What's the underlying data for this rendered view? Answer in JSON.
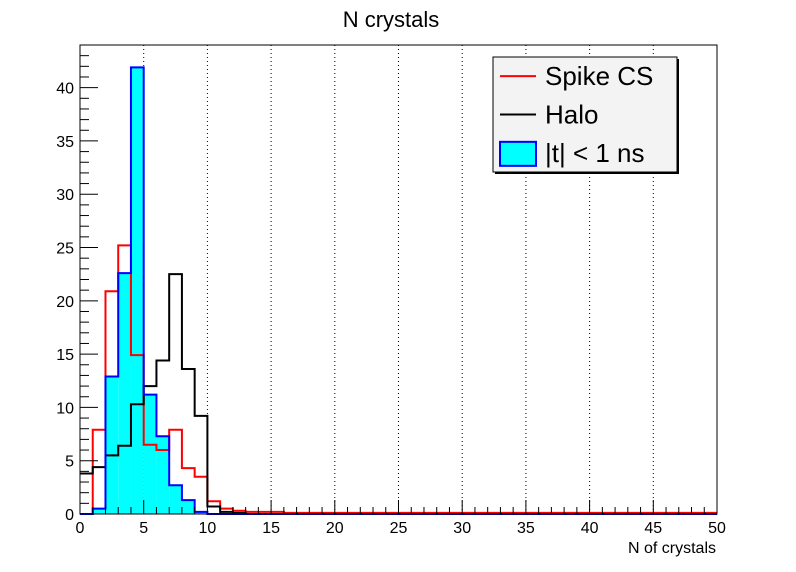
{
  "chart_data": {
    "type": "histogram",
    "title": "N crystals",
    "xlabel": "N of crystals",
    "ylabel": "",
    "xlim": [
      0,
      50
    ],
    "ylim": [
      0,
      44
    ],
    "bin_width": 1,
    "x_ticks": [
      0,
      5,
      10,
      15,
      20,
      25,
      30,
      35,
      40,
      45,
      50
    ],
    "x_tick_labels": [
      "0",
      "5",
      "10",
      "15",
      "20",
      "25",
      "30",
      "35",
      "40",
      "45",
      "50"
    ],
    "y_ticks": [
      0,
      5,
      10,
      15,
      20,
      25,
      30,
      35,
      40
    ],
    "y_tick_labels": [
      "0",
      "5",
      "10",
      "15",
      "20",
      "25",
      "30",
      "35",
      "40"
    ],
    "grid": {
      "x": true,
      "y": false,
      "style": "dotted"
    },
    "legend": {
      "placement": "top-right",
      "entries": [
        {
          "label": "Spike CS",
          "series": "spike_cs"
        },
        {
          "label": "Halo",
          "series": "halo"
        },
        {
          "label": "|t| < 1 ns",
          "series": "in_time"
        }
      ]
    },
    "series": [
      {
        "key": "spike_cs",
        "style": "step-line",
        "color": "#ff0000",
        "values": [
          0,
          7.9,
          20.9,
          25.2,
          14.9,
          6.5,
          6.0,
          7.9,
          4.3,
          3.5,
          1.2,
          0.5,
          0.3,
          0.2,
          0.2,
          0.2,
          0.1,
          0.1,
          0.1,
          0.1,
          0.1,
          0.1,
          0.1,
          0.1,
          0.1,
          0.1,
          0.1,
          0.1,
          0.1,
          0.1,
          0.1,
          0.1,
          0.1,
          0.1,
          0.1,
          0.1,
          0.1,
          0.1,
          0.1,
          0.1,
          0.1,
          0.1,
          0.1,
          0.1,
          0.1,
          0.1,
          0.1,
          0.1,
          0.1,
          0.1
        ]
      },
      {
        "key": "halo",
        "style": "step-line",
        "color": "#000000",
        "values": [
          3.8,
          4.4,
          5.5,
          6.4,
          10.3,
          12.0,
          14.4,
          22.5,
          13.6,
          9.2,
          0.7,
          0.2,
          0.1,
          0,
          0,
          0,
          0,
          0,
          0,
          0,
          0,
          0,
          0,
          0,
          0,
          0,
          0,
          0,
          0,
          0,
          0,
          0,
          0,
          0,
          0,
          0,
          0,
          0,
          0,
          0,
          0,
          0,
          0,
          0,
          0,
          0,
          0,
          0,
          0,
          0
        ]
      },
      {
        "key": "in_time",
        "style": "filled-step",
        "color": "#0000ff",
        "fill": "#00ffff",
        "values": [
          0,
          0.5,
          12.9,
          22.6,
          41.9,
          11.2,
          7.3,
          2.7,
          1.3,
          0.2,
          0,
          0,
          0,
          0,
          0,
          0,
          0,
          0,
          0,
          0,
          0,
          0,
          0,
          0,
          0,
          0,
          0,
          0,
          0,
          0,
          0,
          0,
          0,
          0,
          0,
          0,
          0,
          0,
          0,
          0,
          0,
          0,
          0,
          0,
          0,
          0,
          0,
          0,
          0,
          0
        ]
      }
    ]
  }
}
